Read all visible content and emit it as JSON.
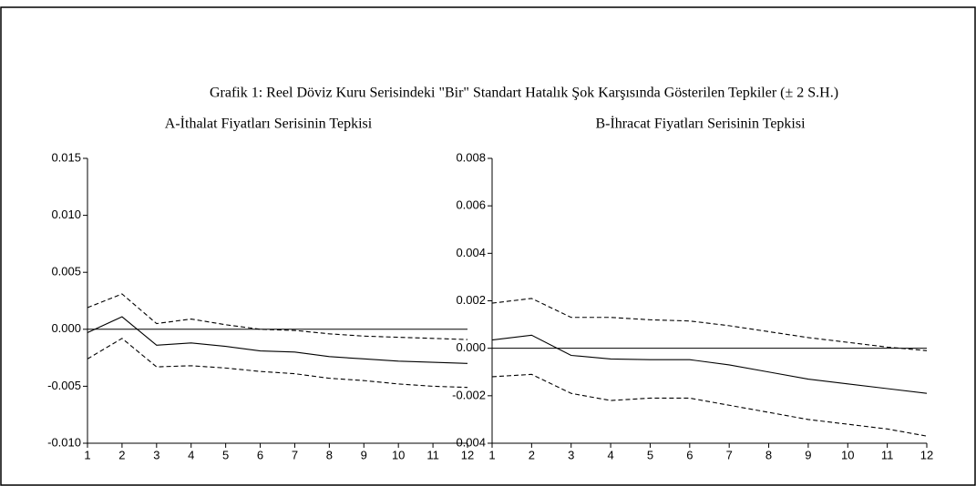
{
  "title": "Grafik 1: Reel Döviz Kuru Serisindeki \"Bir\" Standart Hatalık Şok Karşısında Gösterilen Tepkiler (± 2 S.H.)",
  "chart_data": [
    {
      "type": "line",
      "title": "A-İthalat Fiyatları Serisinin Tepkisi",
      "x": [
        1,
        2,
        3,
        4,
        5,
        6,
        7,
        8,
        9,
        10,
        11,
        12
      ],
      "xlim": [
        1,
        12
      ],
      "xticks": [
        1,
        2,
        3,
        4,
        5,
        6,
        7,
        8,
        9,
        10,
        11,
        12
      ],
      "ylim": [
        -0.01,
        0.015
      ],
      "yticks": [
        0.015,
        {
          "value": 0.01,
          "label": "0.010"
        },
        0.005,
        {
          "value": 0,
          "label": "0.000"
        },
        -0.005,
        {
          "value": -0.01,
          "label": "-0.010"
        }
      ],
      "reference_line": 0,
      "series": [
        {
          "color": "#000000",
          "dashed": false,
          "values": [
            -0.0003,
            0.0011,
            -0.0014,
            -0.0012,
            -0.0015,
            -0.0019,
            -0.002,
            -0.0024,
            -0.0026,
            -0.0028,
            -0.0029,
            -0.003
          ]
        },
        {
          "color": "#000000",
          "dashed": true,
          "values": [
            0.0019,
            0.0031,
            0.0005,
            0.0009,
            0.0004,
            0.0,
            -0.0001,
            -0.0004,
            -0.0006,
            -0.0007,
            -0.0008,
            -0.0009
          ]
        },
        {
          "color": "#000000",
          "dashed": true,
          "values": [
            -0.0026,
            -0.0008,
            -0.0033,
            -0.0032,
            -0.0034,
            -0.0037,
            -0.0039,
            -0.0043,
            -0.0045,
            -0.0048,
            -0.005,
            -0.0051
          ]
        }
      ]
    },
    {
      "type": "line",
      "title": "B-İhracat Fiyatları Serisinin Tepkisi",
      "x": [
        1,
        2,
        3,
        4,
        5,
        6,
        7,
        8,
        9,
        10,
        11,
        12
      ],
      "xlim": [
        1,
        12
      ],
      "xticks": [
        1,
        2,
        3,
        4,
        5,
        6,
        7,
        8,
        9,
        10,
        11,
        12
      ],
      "ylim": [
        -0.004,
        0.008
      ],
      "yticks": [
        0.008,
        0.006,
        0.004,
        0.002,
        {
          "value": 0,
          "label": "0.000"
        },
        -0.002,
        -0.004
      ],
      "reference_line": 0,
      "series": [
        {
          "color": "#000000",
          "dashed": false,
          "values": [
            0.00035,
            0.00055,
            -0.0003,
            -0.00045,
            -0.00048,
            -0.00048,
            -0.0007,
            -0.001,
            -0.0013,
            -0.0015,
            -0.0017,
            -0.0019
          ]
        },
        {
          "color": "#000000",
          "dashed": true,
          "values": [
            0.0019,
            0.0021,
            0.0013,
            0.0013,
            0.0012,
            0.00115,
            0.00095,
            0.0007,
            0.00045,
            0.00025,
            5e-05,
            -0.0001
          ]
        },
        {
          "color": "#000000",
          "dashed": true,
          "values": [
            -0.0012,
            -0.0011,
            -0.0019,
            -0.0022,
            -0.0021,
            -0.0021,
            -0.0024,
            -0.0027,
            -0.003,
            -0.0032,
            -0.0034,
            -0.0037
          ]
        }
      ]
    }
  ]
}
